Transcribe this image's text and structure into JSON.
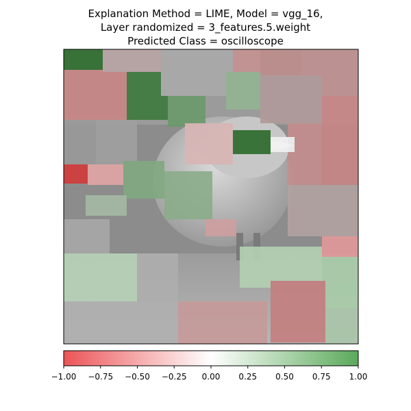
{
  "title_lines": [
    "Explanation Method = LIME, Model = vgg_16,",
    "Layer randomized = 3_features.5.weight",
    "Predicted Class = oscilloscope"
  ],
  "colors": {
    "negative": "#e8373a",
    "neutral": "#ffffff",
    "positive": "#3e9a3e"
  },
  "chart_data": {
    "type": "heatmap",
    "title": "Explanation Method = LIME, Model = vgg_16, Layer randomized = 3_features.5.weight Predicted Class = oscilloscope",
    "colorbar": {
      "range": [
        -1.0,
        1.0
      ],
      "ticks": [
        -1.0,
        -0.75,
        -0.5,
        -0.25,
        0.0,
        0.25,
        0.5,
        0.75,
        1.0
      ],
      "tick_labels": [
        "−1.00",
        "−0.75",
        "−0.50",
        "−0.25",
        "0.00",
        "0.25",
        "0.50",
        "0.75",
        "1.00"
      ],
      "colormap": [
        "#e8373a",
        "#ffffff",
        "#3e9a3e"
      ]
    },
    "axes": {
      "xticks": [],
      "yticks": []
    }
  }
}
